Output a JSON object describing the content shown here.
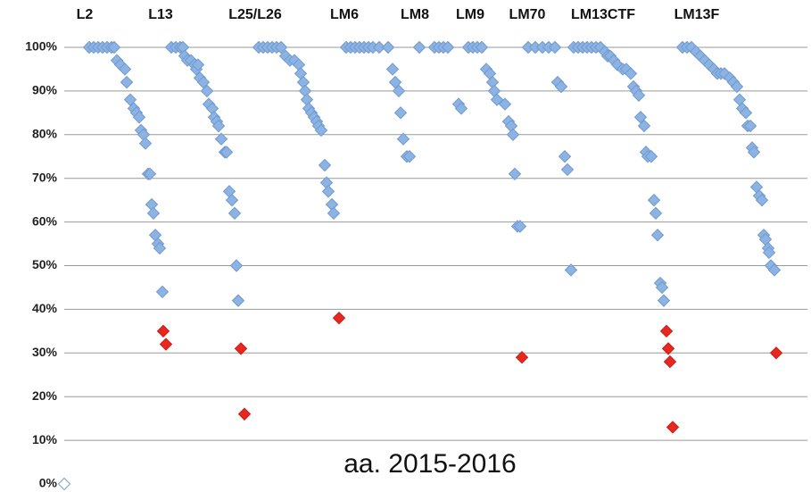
{
  "chart_data": {
    "type": "scatter",
    "group_labels": [
      "L2",
      "L13",
      "L25/L26",
      "LM6",
      "LM8",
      "LM9",
      "LM70",
      "LM13CTF",
      "LM13F"
    ],
    "annotation": "aa. 2015-2016",
    "xlim": [
      70,
      905
    ],
    "ylim": [
      0,
      100
    ],
    "yticks": [
      {
        "value": 0,
        "label": "0%"
      },
      {
        "value": 10,
        "label": "10%"
      },
      {
        "value": 20,
        "label": "20%"
      },
      {
        "value": 30,
        "label": "30%"
      },
      {
        "value": 40,
        "label": "40%"
      },
      {
        "value": 50,
        "label": "50%"
      },
      {
        "value": 60,
        "label": "60%"
      },
      {
        "value": 70,
        "label": "70%"
      },
      {
        "value": 80,
        "label": "80%"
      },
      {
        "value": 90,
        "label": "90%"
      },
      {
        "value": 100,
        "label": "100%"
      }
    ],
    "grid": true,
    "series": [
      {
        "color": "#8db3e2",
        "x": [
          100,
          105,
          110,
          115,
          120,
          125,
          128,
          131,
          135,
          140,
          142,
          146,
          150,
          153,
          156,
          158,
          161,
          163,
          166,
          168,
          170,
          172,
          174,
          177,
          179,
          182,
          192,
          197,
          202,
          205,
          207,
          210,
          214,
          218,
          220,
          222,
          224,
          228,
          232,
          234,
          238,
          240,
          243,
          245,
          248,
          252,
          254,
          257,
          260,
          263,
          265,
          267,
          290,
          295,
          300,
          305,
          310,
          315,
          320,
          325,
          330,
          335,
          337,
          340,
          342,
          344,
          346,
          349,
          352,
          355,
          357,
          360,
          364,
          366,
          368,
          372,
          374,
          388,
          393,
          398,
          403,
          408,
          413,
          418,
          425,
          435,
          440,
          443,
          447,
          449,
          452,
          456,
          459,
          470,
          487,
          492,
          497,
          502,
          525,
          530,
          535,
          540,
          514,
          517,
          545,
          549,
          552,
          554,
          557,
          566,
          570,
          573,
          575,
          577,
          580,
          583,
          592,
          600,
          608,
          615,
          622,
          625,
          629,
          633,
          636,
          640,
          643,
          648,
          653,
          658,
          663,
          668,
          673,
          678,
          681,
          684,
          688,
          692,
          698,
          702,
          707,
          710,
          713,
          716,
          718,
          722,
          724,
          726,
          730,
          733,
          735,
          737,
          740,
          742,
          744,
          765,
          770,
          775,
          780,
          785,
          790,
          795,
          800,
          804,
          808,
          812,
          818,
          822,
          826,
          829,
          832,
          836,
          838,
          841,
          843,
          845,
          848,
          851,
          854,
          856,
          858,
          861,
          862,
          864,
          868
        ],
        "values": [
          100,
          100,
          100,
          100,
          100,
          100,
          100,
          97,
          96,
          95,
          92,
          88,
          86,
          85,
          84,
          81,
          80,
          78,
          71,
          71,
          64,
          62,
          57,
          55,
          54,
          44,
          100,
          100,
          100,
          100,
          98,
          97,
          97,
          96,
          95,
          96,
          93,
          92,
          90,
          87,
          86,
          84,
          83,
          82,
          79,
          76,
          76,
          67,
          65,
          62,
          50,
          42,
          100,
          100,
          100,
          100,
          100,
          100,
          98,
          97,
          97,
          96,
          94,
          92,
          90,
          88,
          86,
          85,
          84,
          83,
          82,
          81,
          73,
          69,
          67,
          64,
          62,
          100,
          100,
          100,
          100,
          100,
          100,
          100,
          100,
          100,
          95,
          92,
          90,
          85,
          79,
          75,
          75,
          100,
          100,
          100,
          100,
          100,
          100,
          100,
          100,
          100,
          87,
          86,
          95,
          94,
          92,
          90,
          88,
          87,
          83,
          82,
          80,
          71,
          59,
          59,
          100,
          100,
          100,
          100,
          100,
          92,
          91,
          75,
          72,
          49,
          100,
          100,
          100,
          100,
          100,
          100,
          100,
          99,
          98,
          98,
          97,
          96,
          95,
          95,
          94,
          91,
          90,
          89,
          84,
          82,
          76,
          75,
          75,
          65,
          62,
          57,
          46,
          45,
          42,
          100,
          100,
          100,
          99,
          98,
          97,
          96,
          95,
          94,
          94,
          94,
          93,
          92,
          91,
          88,
          86,
          85,
          82,
          82,
          77,
          76,
          68,
          66,
          65,
          57,
          56,
          54,
          53,
          50,
          49
        ]
      },
      {
        "color": "#e8281e",
        "x": [
          183,
          186,
          270,
          274,
          380,
          585,
          747,
          749,
          751,
          754,
          870
        ],
        "values": [
          35,
          32,
          31,
          16,
          38,
          29,
          35,
          31,
          28,
          13,
          30
        ]
      },
      {
        "color": "#ffffff",
        "x": [
          72
        ],
        "values": [
          0
        ]
      }
    ]
  }
}
